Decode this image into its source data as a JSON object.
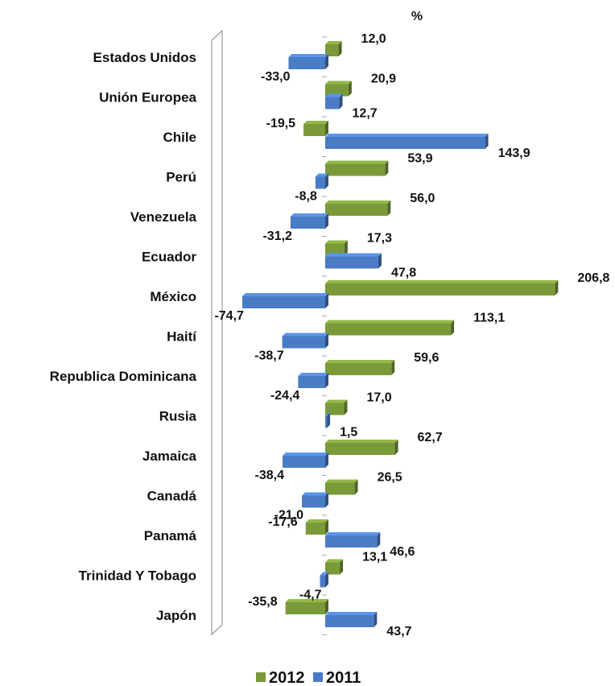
{
  "chart_data": {
    "type": "bar",
    "orientation": "horizontal",
    "unit_label": "%",
    "categories": [
      "Estados Unidos",
      "Unión Europea",
      "Chile",
      "Perú",
      "Venezuela",
      "Ecuador",
      "México",
      "Haití",
      "Republica Dominicana",
      "Rusia",
      "Jamaica",
      "Canadá",
      "Panamá",
      "Trinidad Y Tobago",
      "Japón"
    ],
    "series": [
      {
        "name": "2012",
        "color": "#7a9a3a",
        "values": [
          12.0,
          20.9,
          -19.5,
          53.9,
          56.0,
          17.3,
          206.8,
          113.1,
          59.6,
          17.0,
          62.7,
          26.5,
          -17.6,
          13.1,
          -35.8
        ],
        "labels": [
          "12,0",
          "20,9",
          "-19,5",
          "53,9",
          "56,0",
          "17,3",
          "206,8",
          "113,1",
          "59,6",
          "17,0",
          "62,7",
          "26,5",
          "-17,6",
          "13,1",
          "-35,8"
        ]
      },
      {
        "name": "2011",
        "color": "#4a7cc6",
        "values": [
          -33.0,
          12.7,
          143.9,
          -8.8,
          -31.2,
          47.8,
          -74.7,
          -38.7,
          -24.4,
          1.5,
          -38.4,
          -21.0,
          46.6,
          -4.7,
          43.7
        ],
        "labels": [
          "-33,0",
          "12,7",
          "143,9",
          "-8,8",
          "-31,2",
          "47,8",
          "-74,7",
          "-38,7",
          "-24,4",
          "1,5",
          "-38,4",
          "-21,0",
          "46,6",
          "-4,7",
          "43,7"
        ]
      }
    ],
    "legend_position": "bottom",
    "grid": false
  }
}
